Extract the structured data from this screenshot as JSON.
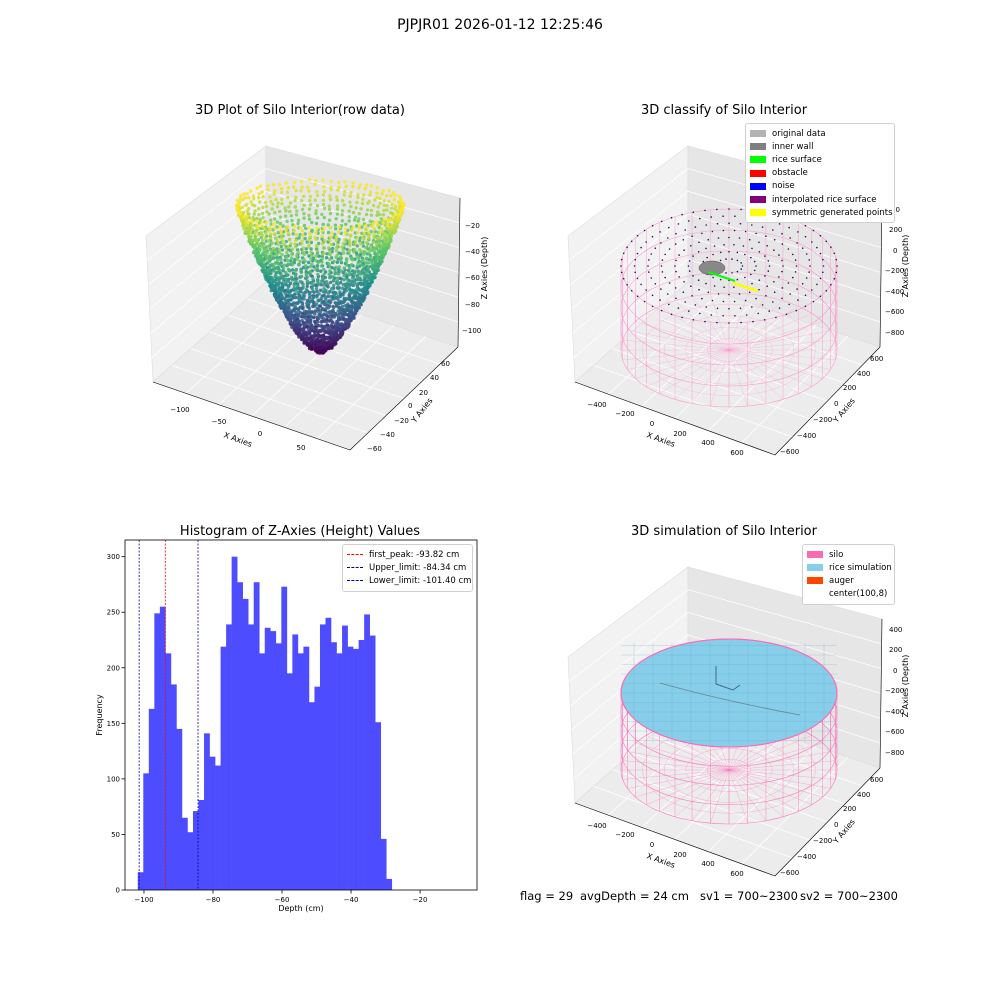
{
  "suptitle": "PJPJR01 2026-01-12 12:25:46",
  "footer": {
    "flag": "flag = 29",
    "avg_depth": "avgDepth = 24 cm",
    "sv1": "sv1 = 700~2300",
    "sv2": "sv2 = 700~2300"
  },
  "chart_data": [
    {
      "type": "scatter",
      "title": "3D Plot of Silo Interior(row data)",
      "xlabel": "X Axies",
      "ylabel": "Y Axies",
      "zlabel": "Z Axies (Depth)",
      "x_ticks": [
        "−100",
        "−50",
        "0",
        "50"
      ],
      "y_ticks": [
        "−60",
        "−40",
        "−20",
        "0",
        "20",
        "40",
        "60"
      ],
      "z_ticks": [
        "−20",
        "−40",
        "−60",
        "−80",
        "−100"
      ],
      "zlim": [
        -105,
        -15
      ],
      "colormap": "viridis"
    },
    {
      "type": "scatter",
      "title": "3D classify of Silo Interior",
      "xlabel": "X Axies",
      "ylabel": "Y Axies",
      "zlabel": "Z Axies (Depth)",
      "x_ticks": [
        "−400",
        "−200",
        "0",
        "200",
        "400",
        "600"
      ],
      "y_ticks": [
        "−600",
        "−400",
        "−200",
        "0",
        "200",
        "400",
        "600"
      ],
      "z_ticks": [
        "200",
        "0",
        "−200",
        "−400",
        "−600",
        "−800"
      ],
      "z_partial": "00",
      "legend_position": "top-right",
      "legend": [
        {
          "label": "original data",
          "color": "#b3b3b3"
        },
        {
          "label": "inner wall",
          "color": "#808080"
        },
        {
          "label": "rice surface",
          "color": "#00ff00"
        },
        {
          "label": "obstacle",
          "color": "#ff0000"
        },
        {
          "label": "noise",
          "color": "#0000ff"
        },
        {
          "label": "interpolated rice surface",
          "color": "#800080"
        },
        {
          "label": "symmetric generated points",
          "color": "#ffff00"
        }
      ]
    },
    {
      "type": "bar",
      "title": "Histogram of Z-Axies (Height) Values",
      "xlabel": "Depth (cm)",
      "ylabel": "Frequency",
      "bin_start": -101.8,
      "bin_width": 1.6,
      "values": [
        16,
        105,
        163,
        249,
        255,
        213,
        185,
        145,
        65,
        52,
        71,
        81,
        141,
        120,
        112,
        219,
        239,
        300,
        277,
        262,
        239,
        277,
        213,
        236,
        233,
        222,
        273,
        195,
        230,
        213,
        219,
        169,
        183,
        239,
        245,
        223,
        213,
        238,
        219,
        217,
        225,
        248,
        229,
        151,
        46,
        10
      ],
      "xlim": [
        -105.5,
        -3.5
      ],
      "ylim": [
        0,
        315
      ],
      "x_ticks": [
        -100,
        -80,
        -60,
        -40,
        -20
      ],
      "x_tick_labels": [
        "−100",
        "−80",
        "−60",
        "−40",
        "−20"
      ],
      "y_ticks": [
        0,
        50,
        100,
        150,
        200,
        250,
        300
      ],
      "y_tick_labels": [
        "0",
        "50",
        "100",
        "150",
        "200",
        "250",
        "300"
      ],
      "bar_color": "#4d4dff",
      "vlines": [
        {
          "label": "first_peak: -93.82 cm",
          "x": -93.82,
          "color": "#ff0000"
        },
        {
          "label": "Upper_limit: -84.34 cm",
          "x": -84.34,
          "color": "#0000aa"
        },
        {
          "label": "Lower_limit: -101.40 cm",
          "x": -101.4,
          "color": "#0000aa"
        }
      ],
      "legend_position": "top-right"
    },
    {
      "type": "scatter",
      "title": "3D simulation of Silo Interior",
      "xlabel": "X Axies",
      "ylabel": "Y Axies",
      "zlabel": "Z Axies (Depth)",
      "x_ticks": [
        "−400",
        "−200",
        "0",
        "200",
        "400",
        "600"
      ],
      "y_ticks": [
        "−600",
        "−400",
        "−200",
        "0",
        "200",
        "400",
        "600"
      ],
      "z_ticks": [
        "400",
        "200",
        "0",
        "−200",
        "−400",
        "−600",
        "−800"
      ],
      "legend_position": "top-right",
      "legend": [
        {
          "label": "silo",
          "color": "#ff69b4"
        },
        {
          "label": "rice simulation",
          "color": "#87ceeb"
        },
        {
          "label": "auger",
          "color": "#ff4500"
        },
        {
          "label": "center(100,8)",
          "color": "#ffffff"
        }
      ]
    }
  ]
}
